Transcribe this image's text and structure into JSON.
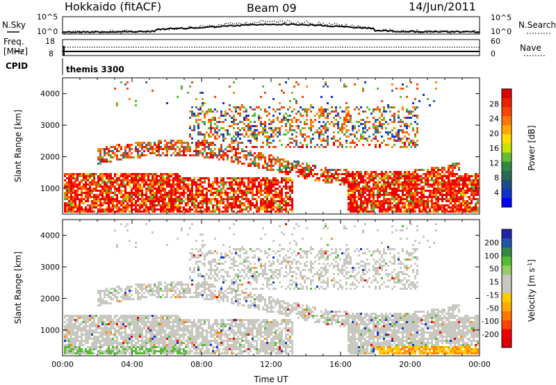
{
  "header": {
    "station": "Hokkaido (fitACF)",
    "beam": "Beam 09",
    "date": "14/Jun/2011"
  },
  "noise_panel": {
    "left_label": "N.Sky",
    "right_label": "N.Search",
    "left_ticks": [
      "10^5",
      "10^0"
    ],
    "right_ticks": [
      "10^5",
      "10^0"
    ]
  },
  "freq_panel": {
    "left_label_1": "Freq.",
    "left_label_2": "[MHz]",
    "right_label": "Nave",
    "left_ticks": [
      "18",
      "8"
    ],
    "right_ticks": [
      "60",
      "0"
    ]
  },
  "cpid": {
    "label": "CPID",
    "value": "themis 3300"
  },
  "colors": {
    "red": "#ee0000",
    "orange_red": "#ff4400",
    "orange": "#ff8800",
    "yellow": "#ffcc00",
    "green": "#55bb33",
    "dark_green": "#338844",
    "teal": "#3a6a8a",
    "blue": "#1133cc",
    "gray": "#c8c8c0"
  },
  "chart_data": [
    {
      "type": "heatmap",
      "title": "Power",
      "xlabel": "",
      "ylabel": "Slant Range [km]",
      "xlim": [
        0,
        24
      ],
      "ylim": [
        180,
        4500
      ],
      "x_ticks": [
        "00:00",
        "04:00",
        "08:00",
        "12:00",
        "16:00",
        "20:00",
        "00:00"
      ],
      "y_ticks": [
        "1000",
        "2000",
        "3000",
        "4000"
      ],
      "colorbar": {
        "label": "Power [dB]",
        "ticks": [
          "4",
          "8",
          "12",
          "16",
          "20",
          "24",
          "28"
        ],
        "range": [
          0,
          30
        ]
      }
    },
    {
      "type": "heatmap",
      "title": "Velocity",
      "xlabel": "Time UT",
      "ylabel": "Slant Range [km]",
      "xlim": [
        0,
        24
      ],
      "ylim": [
        180,
        4500
      ],
      "x_ticks": [
        "00:00",
        "04:00",
        "08:00",
        "12:00",
        "16:00",
        "20:00",
        "00:00"
      ],
      "y_ticks": [
        "1000",
        "2000",
        "3000",
        "4000"
      ],
      "colorbar": {
        "label": "Velocity [m s^-1]",
        "ticks": [
          "200",
          "100",
          "50",
          "15",
          "-15",
          "-50",
          "-100",
          "-200"
        ],
        "range": [
          -250,
          250
        ]
      }
    }
  ]
}
